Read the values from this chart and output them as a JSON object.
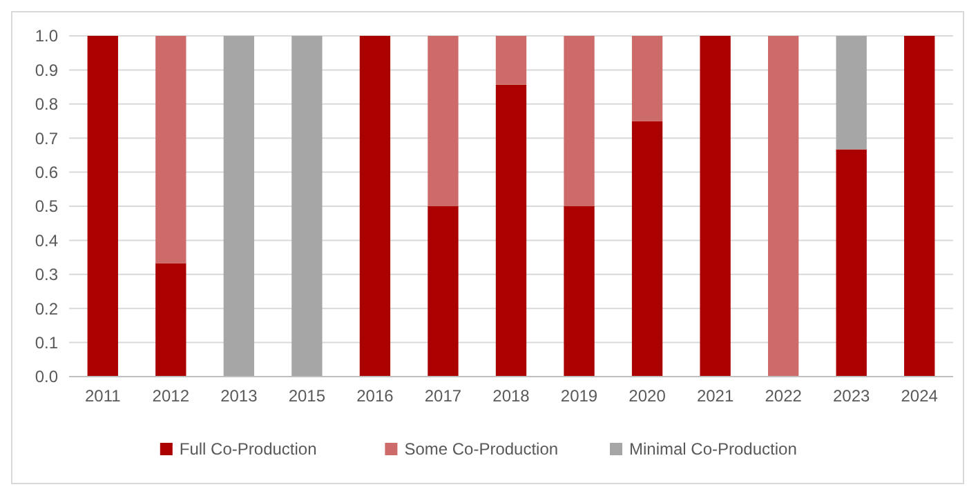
{
  "chart_data": {
    "type": "bar",
    "stacked": true,
    "categories": [
      "2011",
      "2012",
      "2013",
      "2015",
      "2016",
      "2017",
      "2018",
      "2019",
      "2020",
      "2021",
      "2022",
      "2023",
      "2024"
    ],
    "series": [
      {
        "name": "Full Co-Production",
        "color": "#aa0000",
        "values": [
          1,
          0.333,
          0,
          0,
          1,
          0.5,
          0.857,
          0.5,
          0.75,
          1,
          0,
          0.667,
          1
        ]
      },
      {
        "name": "Some Co-Production",
        "color": "#cd6b6b",
        "values": [
          0,
          0.667,
          0,
          0,
          0,
          0.5,
          0.143,
          0.5,
          0.25,
          0,
          1,
          0,
          0
        ]
      },
      {
        "name": "Minimal Co-Production",
        "color": "#a6a6a6",
        "values": [
          0,
          0,
          1,
          1,
          0,
          0,
          0,
          0,
          0,
          0,
          0,
          0.333,
          0
        ]
      }
    ],
    "ylim": [
      0,
      1
    ],
    "yticks": [
      {
        "value": 0,
        "label": "0.0"
      },
      {
        "value": 0.1,
        "label": "0.1"
      },
      {
        "value": 0.2,
        "label": "0.2"
      },
      {
        "value": 0.3,
        "label": "0.3"
      },
      {
        "value": 0.4,
        "label": "0.4"
      },
      {
        "value": 0.5,
        "label": "0.5"
      },
      {
        "value": 0.6,
        "label": "0.6"
      },
      {
        "value": 0.7,
        "label": "0.7"
      },
      {
        "value": 0.8,
        "label": "0.8"
      },
      {
        "value": 0.9,
        "label": "0.9"
      },
      {
        "value": 1,
        "label": "1.0"
      }
    ],
    "grid": "y",
    "legend": "bottom"
  }
}
